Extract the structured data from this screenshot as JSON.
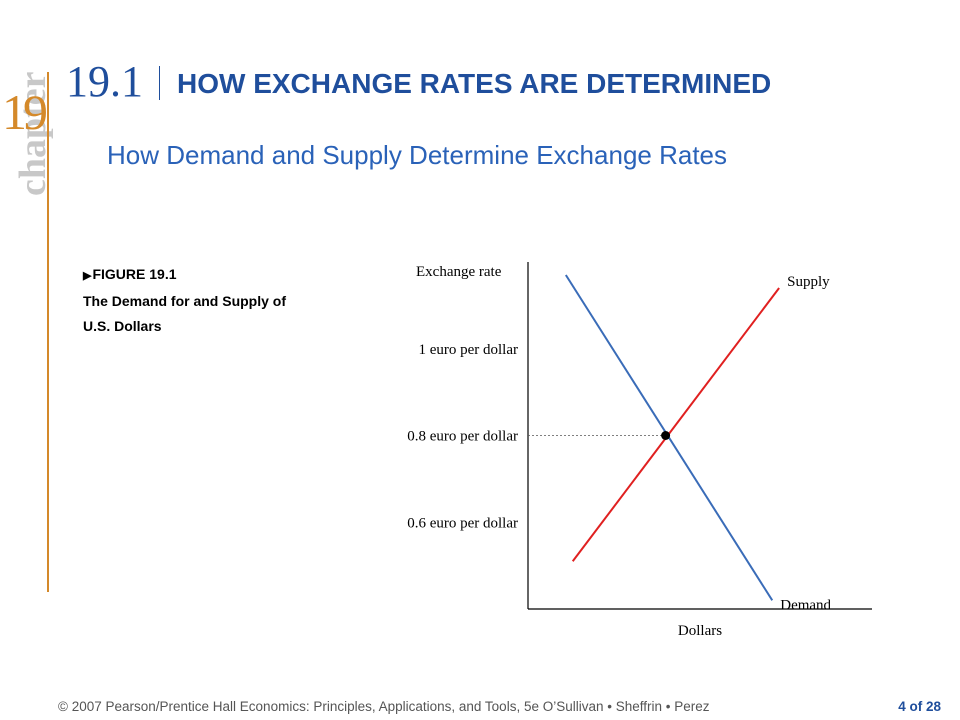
{
  "slide": {
    "chapter_word": "chapter",
    "chapter_number": "19",
    "section_number": "19.1",
    "section_title": "HOW EXCHANGE RATES ARE DETERMINED",
    "subtitle": "How Demand and Supply Determine Exchange Rates"
  },
  "figure": {
    "marker_icon": "right-triangle-icon",
    "label": "FIGURE 19.1",
    "caption_line1": "The Demand for and Supply of",
    "caption_line2": "U.S. Dollars"
  },
  "chart_data": {
    "type": "line",
    "ylabel": "Exchange rate",
    "xlabel": "Dollars",
    "y_tick_labels": [
      "1 euro per dollar",
      "0.8 euro per dollar",
      "0.6 euro per dollar"
    ],
    "y_ticks": [
      1.0,
      0.8,
      0.6
    ],
    "ylim": [
      0.4,
      1.2
    ],
    "xlim": [
      0,
      10
    ],
    "series": [
      {
        "name": "Supply",
        "color": "#e02020",
        "points": [
          [
            1.3,
            0.51
          ],
          [
            7.3,
            1.14
          ]
        ]
      },
      {
        "name": "Demand",
        "color": "#3a6cb8",
        "points": [
          [
            1.1,
            1.17
          ],
          [
            7.1,
            0.42
          ]
        ]
      }
    ],
    "equilibrium": {
      "x": 4.0,
      "y": 0.8
    },
    "grid": false,
    "legend": "none"
  },
  "footer": {
    "credits": "© 2007 Pearson/Prentice Hall   Economics: Principles, Applications, and Tools, 5e   O’Sullivan • Sheffrin • Perez",
    "page": "4 of 28"
  }
}
